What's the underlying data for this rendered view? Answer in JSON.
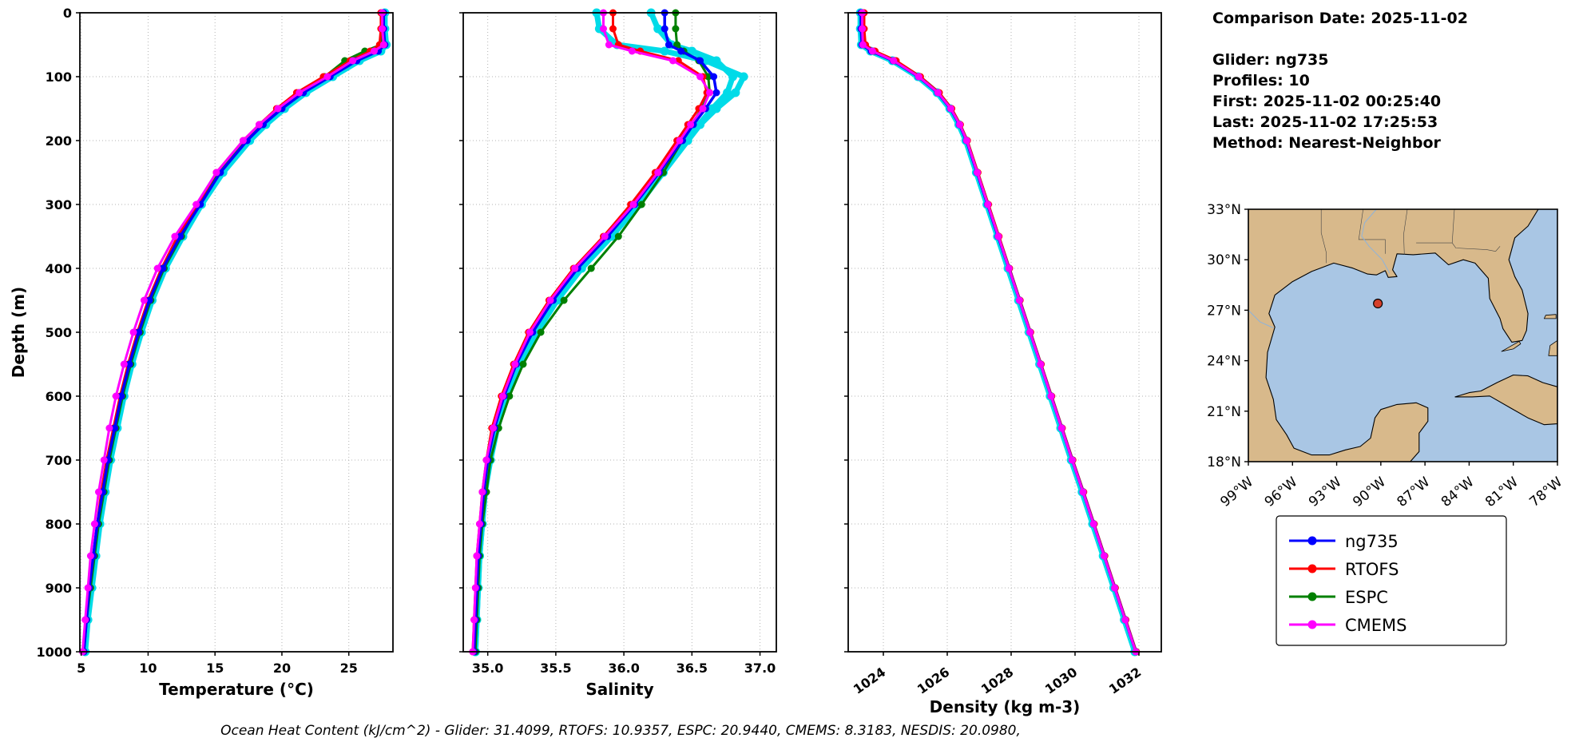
{
  "info": {
    "comparison_date": "Comparison Date: 2025-11-02",
    "glider": "Glider: ng735",
    "profiles": "Profiles: 10",
    "first": "First: 2025-11-02 00:25:40",
    "last": "Last: 2025-11-02 17:25:53",
    "method": "Method: Nearest-Neighbor"
  },
  "footer": {
    "text": "Ocean Heat Content (kJ/cm^2) - Glider: 31.4099,  RTOFS: 10.9357,  ESPC: 20.9440,  CMEMS: 8.3183,  NESDIS: 20.0980,"
  },
  "legend": {
    "items": [
      {
        "label": "ng735",
        "color": "#0000ff"
      },
      {
        "label": "RTOFS",
        "color": "#ff0000"
      },
      {
        "label": "ESPC",
        "color": "#008000"
      },
      {
        "label": "CMEMS",
        "color": "#ff00ff"
      }
    ]
  },
  "map": {
    "ocean_color": "#a9c6e4",
    "land_color": "#d8b98b",
    "marker_color": "#d5402b",
    "marker": {
      "lon": -90.2,
      "lat": 27.4
    },
    "lat_ticks": [
      {
        "value": 33,
        "label": "33°N"
      },
      {
        "value": 30,
        "label": "30°N"
      },
      {
        "value": 27,
        "label": "27°N"
      },
      {
        "value": 24,
        "label": "24°N"
      },
      {
        "value": 21,
        "label": "21°N"
      },
      {
        "value": 18,
        "label": "18°N"
      }
    ],
    "lon_ticks": [
      {
        "value": -99,
        "label": "99°W"
      },
      {
        "value": -96,
        "label": "96°W"
      },
      {
        "value": -93,
        "label": "93°W"
      },
      {
        "value": -90,
        "label": "90°W"
      },
      {
        "value": -87,
        "label": "87°W"
      },
      {
        "value": -84,
        "label": "84°W"
      },
      {
        "value": -81,
        "label": "81°W"
      },
      {
        "value": -78,
        "label": "78°W"
      }
    ]
  },
  "chart_data": [
    {
      "type": "line",
      "title": "",
      "xlabel": "Temperature (°C)",
      "ylabel": "Depth (m)",
      "xlim": [
        4.9,
        28.3
      ],
      "ylim": [
        0,
        1000
      ],
      "grid": true,
      "xticks": [
        5,
        10,
        15,
        20,
        25
      ],
      "xtick_labels": [
        "5",
        "10",
        "15",
        "20",
        "25"
      ],
      "yticks": [
        0,
        100,
        200,
        300,
        400,
        500,
        600,
        700,
        800,
        900,
        1000
      ],
      "tick_rotation": 0,
      "show_ytick_labels": true,
      "depths": [
        0,
        25,
        50,
        60,
        75,
        100,
        125,
        150,
        175,
        200,
        250,
        300,
        350,
        400,
        450,
        500,
        550,
        600,
        650,
        700,
        750,
        800,
        850,
        900,
        950,
        1000
      ],
      "series": [
        {
          "name": "glider-profiles",
          "color": "#00dbe8",
          "width": 7,
          "marker_r": 5.5,
          "values": [
            27.7,
            27.7,
            27.8,
            27.4,
            25.8,
            23.8,
            21.8,
            20.2,
            18.8,
            17.6,
            15.6,
            14.0,
            12.6,
            11.3,
            10.3,
            9.5,
            8.8,
            8.2,
            7.7,
            7.2,
            6.8,
            6.4,
            6.1,
            5.8,
            5.5,
            5.3
          ]
        },
        {
          "name": "ESPC",
          "color": "#008000",
          "width": 3,
          "marker_r": 4.5,
          "values": [
            27.5,
            27.5,
            27.4,
            26.2,
            24.7,
            23.2,
            21.3,
            19.8,
            18.4,
            17.2,
            15.3,
            13.8,
            12.5,
            11.2,
            10.2,
            9.4,
            8.7,
            8.1,
            7.6,
            7.1,
            6.7,
            6.3,
            6.0,
            5.7,
            5.4,
            5.2
          ]
        },
        {
          "name": "RTOFS",
          "color": "#ff0000",
          "width": 3,
          "marker_r": 4.5,
          "values": [
            27.4,
            27.4,
            27.3,
            26.6,
            25.1,
            23.1,
            21.1,
            19.6,
            18.3,
            17.1,
            15.1,
            13.7,
            12.2,
            11.0,
            10.0,
            9.2,
            8.5,
            7.9,
            7.4,
            6.9,
            6.5,
            6.2,
            5.9,
            5.6,
            5.4,
            5.2
          ]
        },
        {
          "name": "ng735",
          "color": "#0000ff",
          "width": 3.5,
          "marker_r": 4.5,
          "values": [
            27.6,
            27.6,
            27.7,
            27.2,
            25.6,
            23.6,
            21.6,
            20.0,
            18.6,
            17.4,
            15.4,
            13.9,
            12.4,
            11.1,
            10.1,
            9.3,
            8.6,
            8.0,
            7.5,
            7.0,
            6.6,
            6.2,
            5.9,
            5.6,
            5.4,
            5.2
          ]
        },
        {
          "name": "CMEMS",
          "color": "#ff00ff",
          "width": 3,
          "marker_r": 4.5,
          "values": [
            27.5,
            27.5,
            27.6,
            26.9,
            25.3,
            23.4,
            21.3,
            19.7,
            18.3,
            17.1,
            15.1,
            13.6,
            12.0,
            10.7,
            9.7,
            8.9,
            8.2,
            7.6,
            7.1,
            6.7,
            6.3,
            6.0,
            5.7,
            5.5,
            5.3,
            5.1
          ]
        }
      ]
    },
    {
      "type": "line",
      "title": "",
      "xlabel": "Salinity",
      "ylabel": "Depth (m)",
      "xlim": [
        34.82,
        37.12
      ],
      "ylim": [
        0,
        1000
      ],
      "grid": true,
      "xticks": [
        35.0,
        35.5,
        36.0,
        36.5,
        37.0
      ],
      "xtick_labels": [
        "35.0",
        "35.5",
        "36.0",
        "36.5",
        "37.0"
      ],
      "yticks": [
        0,
        100,
        200,
        300,
        400,
        500,
        600,
        700,
        800,
        900,
        1000
      ],
      "tick_rotation": 0,
      "show_ytick_labels": false,
      "depths": [
        0,
        25,
        50,
        60,
        75,
        100,
        125,
        150,
        175,
        200,
        250,
        300,
        350,
        400,
        450,
        500,
        550,
        600,
        650,
        700,
        750,
        800,
        850,
        900,
        950,
        1000
      ],
      "series": [
        {
          "name": "glider-profiles-a",
          "color": "#00dbe8",
          "width": 7,
          "marker_r": 5.5,
          "values": [
            36.2,
            36.25,
            36.35,
            36.5,
            36.68,
            36.8,
            36.76,
            36.65,
            36.55,
            36.46,
            36.28,
            36.1,
            35.9,
            35.68,
            35.5,
            35.35,
            35.23,
            35.13,
            35.06,
            35.01,
            34.98,
            34.96,
            34.94,
            34.93,
            34.92,
            34.91
          ]
        },
        {
          "name": "glider-profiles-b",
          "color": "#00dbe8",
          "width": 7,
          "marker_r": 5.5,
          "values": [
            35.8,
            35.82,
            35.95,
            36.3,
            36.6,
            36.88,
            36.82,
            36.68,
            36.56,
            36.47,
            36.29,
            36.11,
            35.91,
            35.69,
            35.51,
            35.36,
            35.24,
            35.14,
            35.07,
            35.02,
            34.98,
            34.96,
            34.94,
            34.93,
            34.92,
            34.91
          ]
        },
        {
          "name": "ESPC",
          "color": "#008000",
          "width": 3,
          "marker_r": 4.5,
          "values": [
            36.38,
            36.38,
            36.39,
            36.44,
            36.55,
            36.62,
            36.63,
            36.57,
            36.5,
            36.43,
            36.29,
            36.13,
            35.96,
            35.76,
            35.56,
            35.39,
            35.26,
            35.16,
            35.08,
            35.02,
            34.99,
            34.96,
            34.94,
            34.93,
            34.92,
            34.91
          ]
        },
        {
          "name": "RTOFS",
          "color": "#ff0000",
          "width": 3,
          "marker_r": 4.5,
          "values": [
            35.92,
            35.92,
            35.96,
            36.12,
            36.4,
            36.58,
            36.61,
            36.55,
            36.47,
            36.39,
            36.23,
            36.05,
            35.85,
            35.63,
            35.45,
            35.3,
            35.19,
            35.1,
            35.03,
            34.99,
            34.96,
            34.94,
            34.92,
            34.91,
            34.9,
            34.89
          ]
        },
        {
          "name": "ng735",
          "color": "#0000ff",
          "width": 3.5,
          "marker_r": 4.5,
          "values": [
            36.3,
            36.3,
            36.33,
            36.42,
            36.56,
            36.66,
            36.68,
            36.6,
            36.51,
            36.43,
            36.26,
            36.08,
            35.88,
            35.66,
            35.48,
            35.33,
            35.21,
            35.12,
            35.05,
            35.0,
            34.97,
            34.95,
            34.93,
            34.92,
            34.91,
            34.9
          ]
        },
        {
          "name": "CMEMS",
          "color": "#ff00ff",
          "width": 3,
          "marker_r": 4.5,
          "values": [
            35.85,
            35.85,
            35.89,
            36.06,
            36.36,
            36.56,
            36.63,
            36.58,
            36.49,
            36.41,
            36.25,
            36.07,
            35.86,
            35.64,
            35.46,
            35.31,
            35.2,
            35.11,
            35.04,
            34.99,
            34.96,
            34.94,
            34.92,
            34.91,
            34.9,
            34.89
          ]
        }
      ]
    },
    {
      "type": "line",
      "title": "",
      "xlabel": "Density (kg m-3)",
      "ylabel": "Depth (m)",
      "xlim": [
        1022.9,
        1032.7
      ],
      "ylim": [
        0,
        1000
      ],
      "grid": true,
      "xticks": [
        1024,
        1026,
        1028,
        1030,
        1032
      ],
      "xtick_labels": [
        "1024",
        "1026",
        "1028",
        "1030",
        "1032"
      ],
      "yticks": [
        0,
        100,
        200,
        300,
        400,
        500,
        600,
        700,
        800,
        900,
        1000
      ],
      "tick_rotation": 35,
      "show_ytick_labels": false,
      "depths": [
        0,
        25,
        50,
        60,
        75,
        100,
        125,
        150,
        175,
        200,
        250,
        300,
        350,
        400,
        450,
        500,
        550,
        600,
        650,
        700,
        750,
        800,
        850,
        900,
        950,
        1000
      ],
      "series": [
        {
          "name": "glider-profiles",
          "color": "#00dbe8",
          "width": 7,
          "marker_r": 5.5,
          "values": [
            1023.28,
            1023.28,
            1023.31,
            1023.6,
            1024.28,
            1025.08,
            1025.68,
            1026.08,
            1026.36,
            1026.58,
            1026.91,
            1027.24,
            1027.57,
            1027.9,
            1028.23,
            1028.56,
            1028.89,
            1029.22,
            1029.55,
            1029.88,
            1030.22,
            1030.55,
            1030.88,
            1031.21,
            1031.54,
            1031.87
          ]
        },
        {
          "name": "ESPC",
          "color": "#008000",
          "width": 3,
          "marker_r": 4.5,
          "values": [
            1023.36,
            1023.36,
            1023.4,
            1023.7,
            1024.36,
            1025.13,
            1025.72,
            1026.12,
            1026.4,
            1026.62,
            1026.95,
            1027.28,
            1027.61,
            1027.94,
            1028.27,
            1028.6,
            1028.93,
            1029.26,
            1029.59,
            1029.92,
            1030.26,
            1030.59,
            1030.92,
            1031.25,
            1031.58,
            1031.91
          ]
        },
        {
          "name": "RTOFS",
          "color": "#ff0000",
          "width": 3,
          "marker_r": 4.5,
          "values": [
            1023.4,
            1023.4,
            1023.44,
            1023.74,
            1024.4,
            1025.16,
            1025.75,
            1026.14,
            1026.41,
            1026.63,
            1026.96,
            1027.29,
            1027.62,
            1027.95,
            1028.28,
            1028.61,
            1028.94,
            1029.27,
            1029.6,
            1029.93,
            1030.27,
            1030.6,
            1030.93,
            1031.26,
            1031.59,
            1031.92
          ]
        },
        {
          "name": "ng735",
          "color": "#0000ff",
          "width": 3.5,
          "marker_r": 4.5,
          "values": [
            1023.3,
            1023.3,
            1023.33,
            1023.62,
            1024.3,
            1025.1,
            1025.7,
            1026.1,
            1026.38,
            1026.6,
            1026.93,
            1027.26,
            1027.59,
            1027.93,
            1028.26,
            1028.59,
            1028.92,
            1029.25,
            1029.58,
            1029.91,
            1030.25,
            1030.58,
            1030.91,
            1031.24,
            1031.57,
            1031.9
          ]
        },
        {
          "name": "CMEMS",
          "color": "#ff00ff",
          "width": 3,
          "marker_r": 4.5,
          "values": [
            1023.34,
            1023.34,
            1023.36,
            1023.66,
            1024.32,
            1025.11,
            1025.71,
            1026.11,
            1026.39,
            1026.61,
            1026.94,
            1027.27,
            1027.6,
            1027.93,
            1028.26,
            1028.59,
            1028.92,
            1029.25,
            1029.58,
            1029.91,
            1030.25,
            1030.58,
            1030.91,
            1031.24,
            1031.57,
            1031.9
          ]
        }
      ]
    }
  ]
}
